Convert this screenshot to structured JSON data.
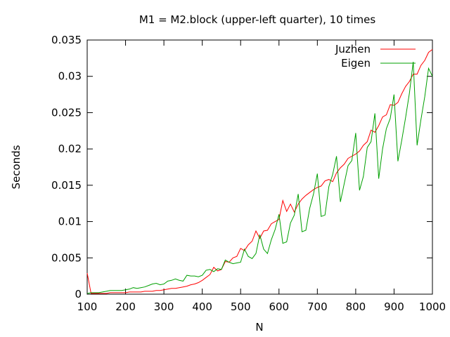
{
  "chart_data": {
    "type": "line",
    "title": "M1 = M2.block (upper-left quarter), 10 times",
    "xlabel": "N",
    "ylabel": "Seconds",
    "xlim": [
      100,
      1000
    ],
    "ylim": [
      0,
      0.035
    ],
    "x_ticks": [
      100,
      200,
      300,
      400,
      500,
      600,
      700,
      800,
      900,
      1000
    ],
    "x_tick_labels": [
      "100",
      "200",
      "300",
      "400",
      "500",
      "600",
      "700",
      "800",
      "900",
      "1000"
    ],
    "y_ticks": [
      0,
      0.005,
      0.01,
      0.015,
      0.02,
      0.025,
      0.03,
      0.035
    ],
    "y_tick_labels": [
      "0",
      "0.005",
      "0.01",
      "0.015",
      "0.02",
      "0.025",
      "0.03",
      "0.035"
    ],
    "grid": false,
    "legend_position": "top-right",
    "x": [
      100,
      110,
      120,
      130,
      140,
      150,
      160,
      170,
      180,
      190,
      200,
      210,
      220,
      230,
      240,
      250,
      260,
      270,
      280,
      290,
      300,
      310,
      320,
      330,
      340,
      350,
      360,
      370,
      380,
      390,
      400,
      410,
      420,
      430,
      440,
      450,
      460,
      470,
      480,
      490,
      500,
      510,
      520,
      530,
      540,
      550,
      560,
      570,
      580,
      590,
      600,
      610,
      620,
      630,
      640,
      650,
      660,
      670,
      680,
      690,
      700,
      710,
      720,
      730,
      740,
      750,
      760,
      770,
      780,
      790,
      800,
      810,
      820,
      830,
      840,
      850,
      860,
      870,
      880,
      890,
      900,
      910,
      920,
      930,
      940,
      950,
      960,
      970,
      980,
      990,
      1000
    ],
    "series": [
      {
        "name": "Juzhen",
        "color": "#ff0000",
        "values": [
          0.0029,
          0.0001,
          0.0001,
          0.0001,
          0.0001,
          0.0001,
          0.0002,
          0.0002,
          0.0002,
          0.0002,
          0.0002,
          0.0003,
          0.0003,
          0.0003,
          0.0003,
          0.0004,
          0.0004,
          0.0004,
          0.0005,
          0.0005,
          0.0006,
          0.0007,
          0.0008,
          0.0008,
          0.0009,
          0.001,
          0.0011,
          0.0013,
          0.0014,
          0.0016,
          0.0019,
          0.0023,
          0.0027,
          0.0037,
          0.0032,
          0.0034,
          0.0045,
          0.0044,
          0.005,
          0.0052,
          0.0063,
          0.006,
          0.0068,
          0.0073,
          0.0087,
          0.0077,
          0.0087,
          0.0088,
          0.0097,
          0.01,
          0.0103,
          0.0129,
          0.0114,
          0.0124,
          0.0113,
          0.0124,
          0.0131,
          0.0136,
          0.014,
          0.0144,
          0.0147,
          0.0149,
          0.0156,
          0.0158,
          0.0155,
          0.0167,
          0.0174,
          0.0179,
          0.0187,
          0.019,
          0.0193,
          0.0197,
          0.0205,
          0.021,
          0.0226,
          0.0223,
          0.0232,
          0.0244,
          0.0247,
          0.0261,
          0.026,
          0.0264,
          0.0276,
          0.0286,
          0.0293,
          0.0303,
          0.0303,
          0.0315,
          0.0322,
          0.0333,
          0.0337
        ]
      },
      {
        "name": "Eigen",
        "color": "#00a000",
        "values": [
          0.0001,
          0.0002,
          0.0002,
          0.0002,
          0.0003,
          0.0004,
          0.0005,
          0.0005,
          0.0005,
          0.0005,
          0.0006,
          0.0007,
          0.0009,
          0.0008,
          0.0009,
          0.001,
          0.0012,
          0.0014,
          0.0015,
          0.0013,
          0.0014,
          0.0018,
          0.0019,
          0.0021,
          0.0019,
          0.0018,
          0.0026,
          0.0025,
          0.0025,
          0.0024,
          0.0026,
          0.0033,
          0.0034,
          0.0031,
          0.0035,
          0.0034,
          0.0047,
          0.0044,
          0.0042,
          0.0043,
          0.0044,
          0.0062,
          0.0052,
          0.0049,
          0.0056,
          0.0082,
          0.0062,
          0.0056,
          0.0075,
          0.0089,
          0.011,
          0.007,
          0.0072,
          0.0098,
          0.0109,
          0.0138,
          0.0086,
          0.0088,
          0.0118,
          0.0138,
          0.0166,
          0.0107,
          0.0109,
          0.0148,
          0.0165,
          0.019,
          0.0127,
          0.0152,
          0.0177,
          0.0184,
          0.0222,
          0.0143,
          0.0162,
          0.0202,
          0.021,
          0.0249,
          0.0159,
          0.02,
          0.0228,
          0.0242,
          0.0275,
          0.0183,
          0.0212,
          0.0243,
          0.0277,
          0.032,
          0.0205,
          0.024,
          0.0272,
          0.0311,
          0.03
        ]
      }
    ]
  }
}
